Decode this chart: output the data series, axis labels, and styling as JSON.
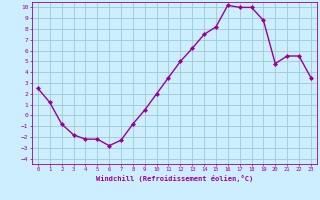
{
  "x": [
    0,
    1,
    2,
    3,
    4,
    5,
    6,
    7,
    8,
    9,
    10,
    11,
    12,
    13,
    14,
    15,
    16,
    17,
    18,
    19,
    20,
    21,
    22,
    23
  ],
  "y": [
    2.5,
    1.2,
    -0.8,
    -1.8,
    -2.2,
    -2.2,
    -2.8,
    -2.3,
    -0.8,
    0.5,
    2.0,
    3.5,
    5.0,
    6.2,
    7.5,
    8.2,
    10.2,
    10.0,
    10.0,
    8.8,
    4.8,
    5.5,
    5.5,
    3.5
  ],
  "line_color": "#990099",
  "marker": "D",
  "markersize": 2,
  "linewidth": 1.0,
  "bg_color": "#cceeff",
  "grid_color": "#99cccc",
  "tick_color": "#990099",
  "label_color": "#990099",
  "xlabel": "Windchill (Refroidissement éolien,°C)",
  "ylabel": "",
  "xlim": [
    -0.5,
    23.5
  ],
  "ylim": [
    -4.5,
    10.5
  ],
  "yticks": [
    10,
    9,
    8,
    7,
    6,
    5,
    4,
    3,
    2,
    1,
    0,
    -1,
    -2,
    -3,
    -4
  ],
  "xticks": [
    0,
    1,
    2,
    3,
    4,
    5,
    6,
    7,
    8,
    9,
    10,
    11,
    12,
    13,
    14,
    15,
    16,
    17,
    18,
    19,
    20,
    21,
    22,
    23
  ]
}
